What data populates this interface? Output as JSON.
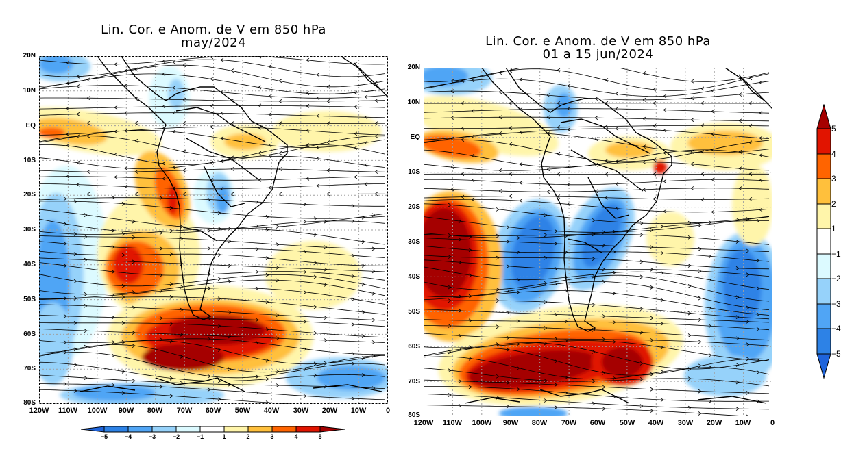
{
  "panels": [
    {
      "title_line1": "Lin. Cor. e Anom. de V em 850 hPa",
      "title_line2": "may/2024",
      "lat_labels": [
        "20N",
        "10N",
        "EQ",
        "10S",
        "20S",
        "30S",
        "40S",
        "50S",
        "60S",
        "70S",
        "80S"
      ],
      "lon_labels": [
        "120W",
        "110W",
        "100W",
        "90W",
        "80W",
        "70W",
        "60W",
        "50W",
        "40W",
        "30W",
        "20W",
        "10W",
        "0"
      ]
    },
    {
      "title_line1": "Lin. Cor. e Anom. de V em 850 hPa",
      "title_line2": "01 a 15 jun/2024",
      "lat_labels": [
        "20N",
        "10N",
        "EQ",
        "10S",
        "20S",
        "30S",
        "40S",
        "50S",
        "60S",
        "70S",
        "80S"
      ],
      "lon_labels": [
        "120W",
        "110W",
        "100W",
        "90W",
        "80W",
        "70W",
        "60W",
        "50W",
        "40W",
        "30W",
        "20W",
        "10W",
        "0"
      ]
    }
  ],
  "colorbar": {
    "labels": [
      "-5",
      "-4",
      "-3",
      "-2",
      "-1",
      "1",
      "2",
      "3",
      "4",
      "5"
    ],
    "colors": {
      "lt_m5": "#1e64dc",
      "m5_m4": "#2d82e6",
      "m4_m3": "#50a5f5",
      "m3_m2": "#96d2fa",
      "m2_m1": "#dcfaff",
      "m1_1": "#ffffff",
      "1_2": "#fff5aa",
      "2_3": "#ffc03c",
      "3_4": "#ff6400",
      "4_5": "#e11400",
      "gt_5": "#a50000"
    }
  }
}
